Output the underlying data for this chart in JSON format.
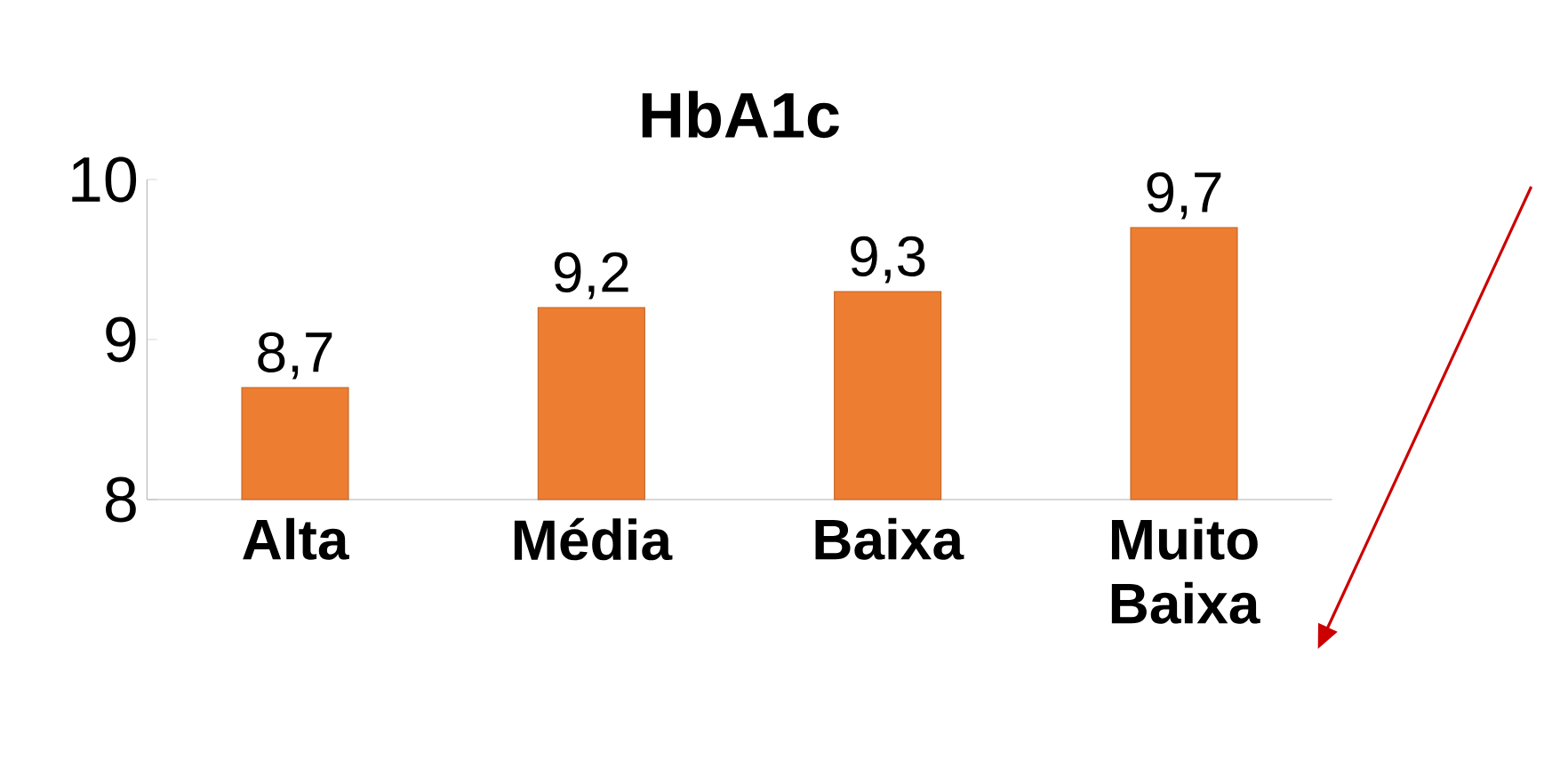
{
  "chart_data": {
    "type": "bar",
    "title": "HbA1c",
    "categories": [
      "Alta",
      "Média",
      "Baixa",
      "Muito Baixa"
    ],
    "values": [
      8.7,
      9.2,
      9.3,
      9.7
    ],
    "value_labels": [
      "8,7",
      "9,2",
      "9,3",
      "9,7"
    ],
    "color": "#ed7d31",
    "ylim": [
      8,
      10
    ],
    "yticks": [
      8,
      9,
      10
    ],
    "grid": false
  }
}
